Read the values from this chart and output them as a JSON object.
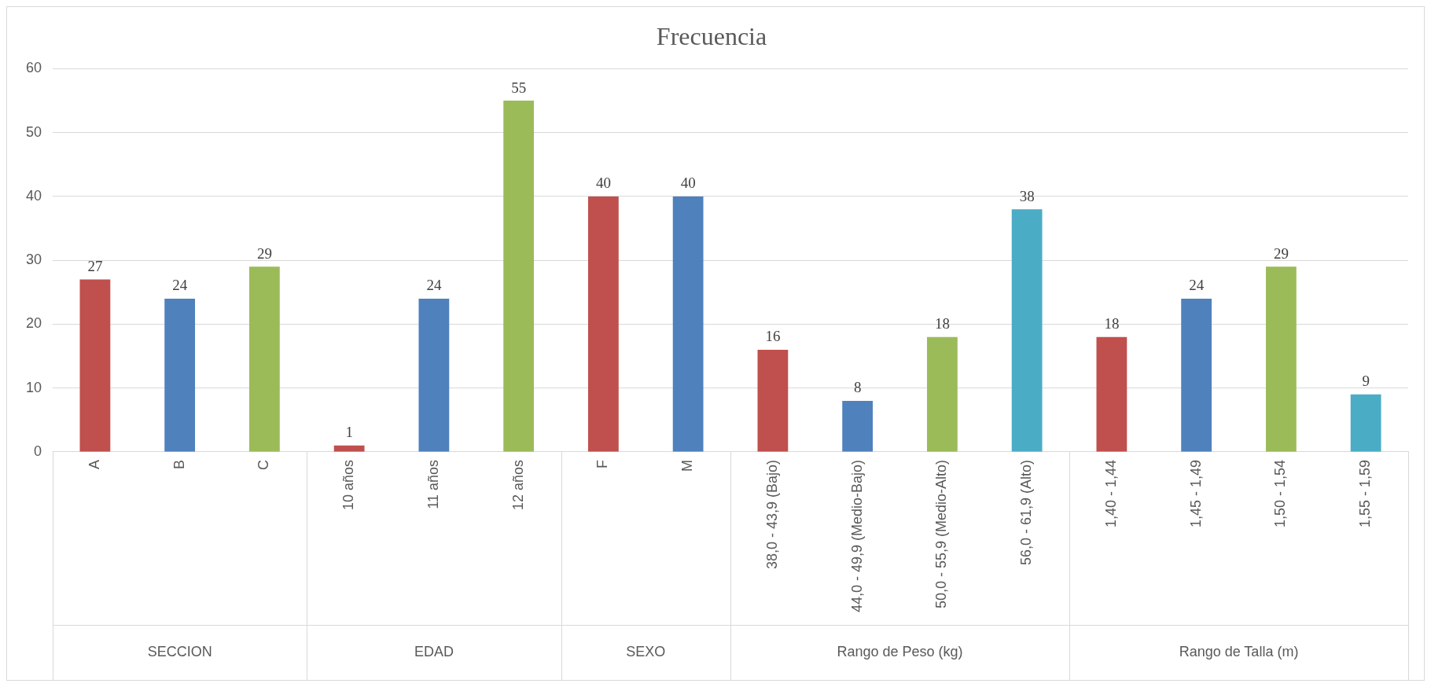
{
  "chart_data": {
    "type": "bar",
    "title": "Frecuencia",
    "categories": [
      "A",
      "B",
      "C",
      "10 años",
      "11 años",
      "12 años",
      "F",
      "M",
      "38,0 - 43,9 (Bajo)",
      "44,0 - 49,9 (Medio-Bajo)",
      "50,0 - 55,9 (Medio-Alto)",
      "56,0 - 61,9 (Alto)",
      "1,40 - 1,44",
      "1,45 - 1,49",
      "1,50 - 1,54",
      "1,55 - 1,59"
    ],
    "values": [
      27,
      24,
      29,
      1,
      24,
      55,
      40,
      40,
      16,
      8,
      18,
      38,
      18,
      24,
      29,
      9
    ],
    "colors": [
      "#c0504d",
      "#4f81bd",
      "#9bbb59",
      "#c0504d",
      "#4f81bd",
      "#9bbb59",
      "#c0504d",
      "#4f81bd",
      "#c0504d",
      "#4f81bd",
      "#9bbb59",
      "#4bacc6",
      "#c0504d",
      "#4f81bd",
      "#9bbb59",
      "#4bacc6"
    ],
    "ylim": [
      0,
      60
    ],
    "yticks": [
      0,
      10,
      20,
      30,
      40,
      50,
      60
    ],
    "grid": "y",
    "data_labels": true,
    "legend": false,
    "annotations": [
      "SECCION",
      "EDAD",
      "SEXO",
      "Rango de Peso (kg)",
      "Rango de Talla (m)"
    ]
  }
}
